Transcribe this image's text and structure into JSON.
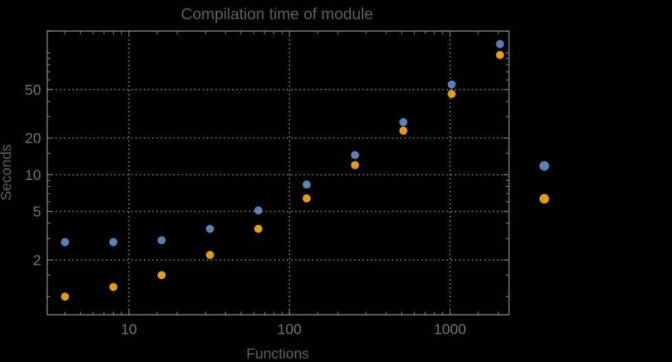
{
  "figure": {
    "title": "Compilation time of module",
    "x_axis_label": "Functions",
    "y_axis_label": "Seconds"
  },
  "colors": {
    "background": "#000000",
    "frame": "#828282",
    "grid": "#8a8a8a",
    "title_text": "#5e5e5e",
    "axis_label_text": "#5f5f5f",
    "tick_label_text": "#747474",
    "series1": "#5e81b5",
    "series2": "#e19c24"
  },
  "chart_data": {
    "type": "scatter",
    "title": "Compilation time of module",
    "xlabel": "Functions",
    "ylabel": "Seconds",
    "x_scale": "log",
    "y_scale": "log",
    "grid": "dotted lines at major ticks, both axes",
    "legend_position": "outside right, markers only (labels not visible)",
    "x": [
      4,
      8,
      16,
      32,
      64,
      128,
      256,
      512,
      1024,
      2048
    ],
    "series": [
      {
        "name": "series-1-blue",
        "color": "#5e81b5",
        "values": [
          2.8,
          2.8,
          2.9,
          3.6,
          5.1,
          8.3,
          14.5,
          27,
          55,
          118
        ]
      },
      {
        "name": "series-2-orange",
        "color": "#e19c24",
        "values": [
          1.0,
          1.2,
          1.5,
          2.2,
          3.6,
          6.4,
          12,
          23,
          46,
          96
        ]
      }
    ],
    "xlim": [
      3.1,
      2330
    ],
    "ylim": [
      0.71,
      151
    ],
    "x_major_ticks": [
      10,
      100,
      1000
    ],
    "x_major_tick_labels": [
      "10",
      "100",
      "1000"
    ],
    "x_minor_ticks": [
      4,
      5,
      6,
      7,
      8,
      9,
      15,
      20,
      30,
      40,
      50,
      60,
      70,
      80,
      90,
      150,
      200,
      300,
      400,
      500,
      600,
      700,
      800,
      900,
      1500,
      2000
    ],
    "y_major_ticks": [
      2,
      5,
      10,
      20,
      50
    ],
    "y_major_tick_labels": [
      "2",
      "5",
      "10",
      "20",
      "50"
    ],
    "y_minor_ticks": [
      1,
      1.5,
      3,
      4,
      6,
      7,
      8,
      9,
      15,
      30,
      40,
      60,
      70,
      80,
      90,
      100,
      150
    ],
    "legend_markers": [
      {
        "series": "series-1-blue",
        "color": "#5e81b5"
      },
      {
        "series": "series-2-orange",
        "color": "#e19c24"
      }
    ]
  }
}
